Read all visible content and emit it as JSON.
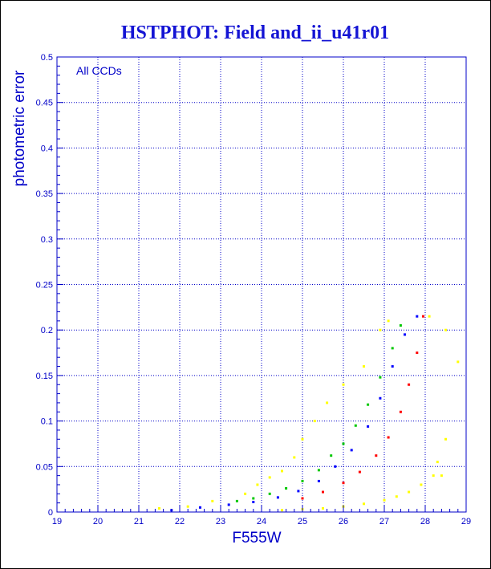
{
  "colors": {
    "title": "#1414d4",
    "axis": "#0000c8",
    "grid": "#0000c8",
    "bright_series": "#ffff00",
    "green_series": "#00c800",
    "blue_series": "#0000ff",
    "red_series": "#ff0000"
  },
  "chart_data": {
    "type": "scatter",
    "title": "HSTPHOT: Field and_ii_u41r01",
    "xlabel": "F555W",
    "ylabel": "photometric error",
    "annotation": "All CCDs",
    "xlim": [
      19,
      29
    ],
    "ylim": [
      0,
      0.5
    ],
    "xticks": [
      "19",
      "20",
      "21",
      "22",
      "23",
      "24",
      "25",
      "26",
      "27",
      "28",
      "29"
    ],
    "yticks": [
      "0",
      "0.05",
      "0.1",
      "0.15",
      "0.2",
      "0.25",
      "0.3",
      "0.35",
      "0.4",
      "0.45",
      "0.5"
    ],
    "grid": true,
    "series": [
      {
        "color_key": "bright_series",
        "points": [
          [
            21.5,
            0.004
          ],
          [
            22.2,
            0.006
          ],
          [
            22.8,
            0.012
          ],
          [
            23.6,
            0.02
          ],
          [
            23.9,
            0.03
          ],
          [
            24.2,
            0.038
          ],
          [
            24.5,
            0.045
          ],
          [
            24.8,
            0.06
          ],
          [
            25.0,
            0.08
          ],
          [
            25.3,
            0.1
          ],
          [
            25.6,
            0.12
          ],
          [
            26.0,
            0.14
          ],
          [
            26.5,
            0.16
          ],
          [
            26.9,
            0.2
          ],
          [
            27.1,
            0.21
          ],
          [
            28.1,
            0.215
          ],
          [
            28.5,
            0.2
          ],
          [
            28.8,
            0.165
          ],
          [
            28.5,
            0.08
          ],
          [
            28.3,
            0.055
          ],
          [
            28.4,
            0.04
          ],
          [
            24.5,
            0.002
          ],
          [
            25.0,
            0.003
          ],
          [
            25.5,
            0.004
          ],
          [
            26.0,
            0.006
          ],
          [
            26.5,
            0.009
          ],
          [
            27.0,
            0.013
          ],
          [
            27.3,
            0.017
          ],
          [
            27.6,
            0.022
          ],
          [
            27.9,
            0.03
          ],
          [
            28.2,
            0.04
          ]
        ]
      },
      {
        "color_key": "green_series",
        "points": [
          [
            23.4,
            0.012
          ],
          [
            23.8,
            0.015
          ],
          [
            24.2,
            0.02
          ],
          [
            24.6,
            0.026
          ],
          [
            25.0,
            0.034
          ],
          [
            25.4,
            0.046
          ],
          [
            25.7,
            0.062
          ],
          [
            26.0,
            0.075
          ],
          [
            26.3,
            0.095
          ],
          [
            26.6,
            0.118
          ],
          [
            26.9,
            0.148
          ],
          [
            27.2,
            0.18
          ],
          [
            27.4,
            0.205
          ]
        ]
      },
      {
        "color_key": "blue_series",
        "points": [
          [
            21.8,
            0.002
          ],
          [
            22.5,
            0.005
          ],
          [
            23.2,
            0.008
          ],
          [
            23.8,
            0.011
          ],
          [
            24.4,
            0.016
          ],
          [
            24.9,
            0.023
          ],
          [
            25.4,
            0.034
          ],
          [
            25.8,
            0.05
          ],
          [
            26.2,
            0.068
          ],
          [
            26.6,
            0.094
          ],
          [
            26.9,
            0.125
          ],
          [
            27.2,
            0.16
          ],
          [
            27.5,
            0.195
          ],
          [
            27.8,
            0.215
          ]
        ]
      },
      {
        "color_key": "red_series",
        "points": [
          [
            25.0,
            0.015
          ],
          [
            25.5,
            0.022
          ],
          [
            26.0,
            0.032
          ],
          [
            26.4,
            0.044
          ],
          [
            26.8,
            0.062
          ],
          [
            27.1,
            0.082
          ],
          [
            27.4,
            0.11
          ],
          [
            27.6,
            0.14
          ],
          [
            27.8,
            0.175
          ],
          [
            27.95,
            0.215
          ]
        ]
      }
    ]
  }
}
